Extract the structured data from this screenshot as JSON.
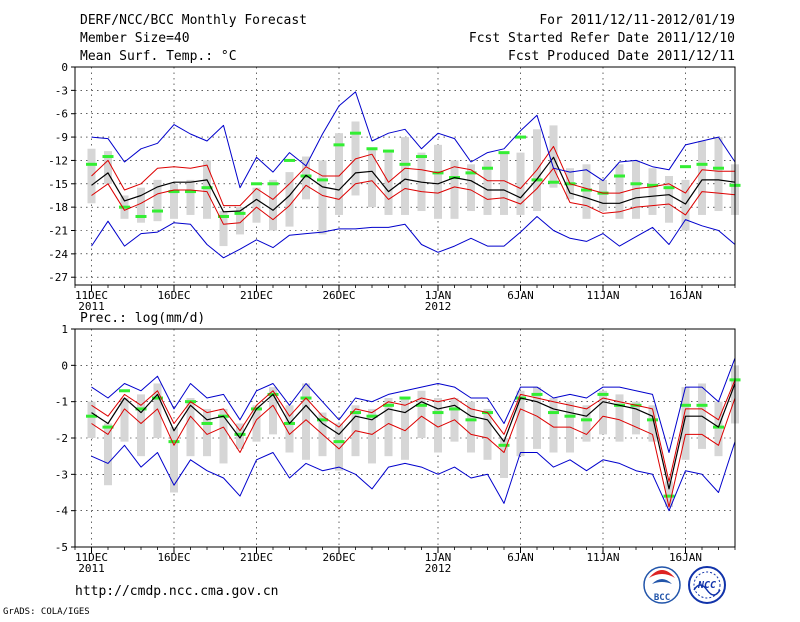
{
  "header": {
    "title_left": "DERF/NCC/BCC Monthly Forecast",
    "member_size": "Member Size=40",
    "title_right": "For 2011/12/11-2012/01/19",
    "started_refer": "Fcst Started Refer Date 2011/12/10",
    "produced": "Fcst Produced Date 2011/12/11"
  },
  "footer": {
    "url": "http://cmdp.ncc.cma.gov.cn",
    "grads": "GrADS: COLA/IGES",
    "logo_bcc": "BCC",
    "logo_ncc": "NCC"
  },
  "colors": {
    "mean": "#000000",
    "band": "#dd0000",
    "envelope": "#0000cc",
    "member_bar": "#d6d6d6",
    "clim": "#33ee33",
    "grid": "#000000"
  },
  "chart_data": [
    {
      "type": "line",
      "title": "Mean Surf. Temp.: °C",
      "ylim": [
        -28,
        0
      ],
      "yticks": [
        0,
        -3,
        -6,
        -9,
        -12,
        -15,
        -18,
        -21,
        -24,
        -27
      ],
      "xlim": [
        0,
        40
      ],
      "xticks": [
        {
          "x": 1,
          "label": "11DEC",
          "sub": "2011"
        },
        {
          "x": 6,
          "label": "16DEC",
          "sub": ""
        },
        {
          "x": 11,
          "label": "21DEC",
          "sub": ""
        },
        {
          "x": 16,
          "label": "26DEC",
          "sub": ""
        },
        {
          "x": 22,
          "label": "1JAN",
          "sub": "2012"
        },
        {
          "x": 27,
          "label": "6JAN",
          "sub": ""
        },
        {
          "x": 32,
          "label": "11JAN",
          "sub": ""
        },
        {
          "x": 37,
          "label": "16JAN",
          "sub": ""
        }
      ],
      "grid": true,
      "x": [
        1,
        2,
        3,
        4,
        5,
        6,
        7,
        8,
        9,
        10,
        11,
        12,
        13,
        14,
        15,
        16,
        17,
        18,
        19,
        20,
        21,
        22,
        23,
        24,
        25,
        26,
        27,
        28,
        29,
        30,
        31,
        32,
        33,
        34,
        35,
        36,
        37,
        38,
        39,
        40
      ],
      "series": [
        {
          "name": "mean",
          "values": [
            -15.2,
            -13.6,
            -17.2,
            -16.5,
            -15.4,
            -14.8,
            -14.8,
            -14.5,
            -18.6,
            -18.5,
            -17.0,
            -18.4,
            -16.5,
            -13.9,
            -15.4,
            -15.8,
            -13.6,
            -13.4,
            -16.0,
            -14.4,
            -14.8,
            -15.0,
            -14.2,
            -14.6,
            -15.8,
            -15.8,
            -16.8,
            -14.4,
            -11.6,
            -16.2,
            -16.8,
            -17.5,
            -17.5,
            -16.8,
            -16.6,
            -16.4,
            -17.6,
            -14.5,
            -14.5,
            -14.8
          ]
        },
        {
          "name": "upper",
          "values": [
            -14.0,
            -12.0,
            -15.8,
            -15.0,
            -13.0,
            -12.8,
            -13.0,
            -12.6,
            -17.8,
            -17.8,
            -15.6,
            -17.0,
            -15.0,
            -12.8,
            -14.0,
            -14.0,
            -11.8,
            -11.2,
            -14.8,
            -13.0,
            -13.2,
            -13.6,
            -12.8,
            -13.2,
            -14.6,
            -14.6,
            -15.6,
            -13.2,
            -10.2,
            -15.0,
            -15.6,
            -16.2,
            -16.2,
            -15.6,
            -15.4,
            -15.0,
            -16.2,
            -13.2,
            -13.4,
            -13.4
          ]
        },
        {
          "name": "lower",
          "values": [
            -16.5,
            -15.0,
            -18.4,
            -17.5,
            -16.3,
            -15.8,
            -15.8,
            -16.0,
            -20.2,
            -20.0,
            -18.0,
            -19.6,
            -17.8,
            -15.2,
            -16.5,
            -17.0,
            -15.0,
            -14.6,
            -17.0,
            -15.6,
            -16.0,
            -16.2,
            -15.4,
            -15.8,
            -17.0,
            -16.8,
            -17.6,
            -15.6,
            -13.0,
            -17.4,
            -17.8,
            -18.8,
            -18.6,
            -18.0,
            -17.8,
            -17.6,
            -19.0,
            -16.0,
            -16.2,
            -16.4
          ]
        },
        {
          "name": "max",
          "values": [
            -9.0,
            -9.2,
            -12.2,
            -10.5,
            -9.8,
            -7.4,
            -8.6,
            -9.5,
            -7.5,
            -15.5,
            -11.6,
            -13.5,
            -11.0,
            -12.7,
            -8.6,
            -5.0,
            -3.2,
            -9.5,
            -8.5,
            -8.0,
            -10.5,
            -8.5,
            -9.2,
            -12.2,
            -11.0,
            -10.5,
            -8.2,
            -6.2,
            -13.0,
            -13.5,
            -13.2,
            -14.6,
            -12.2,
            -12.0,
            -12.8,
            -13.2,
            -10.0,
            -9.5,
            -9.0,
            -12.2
          ]
        },
        {
          "name": "min",
          "values": [
            -23.0,
            -19.8,
            -23.0,
            -21.4,
            -21.2,
            -20.0,
            -20.2,
            -22.8,
            -24.5,
            -23.4,
            -22.2,
            -23.2,
            -21.6,
            -21.4,
            -21.2,
            -20.8,
            -20.8,
            -20.6,
            -20.6,
            -20.2,
            -22.8,
            -23.8,
            -23.0,
            -22.0,
            -23.0,
            -23.0,
            -21.2,
            -19.2,
            -21.0,
            -22.0,
            -22.4,
            -21.4,
            -23.0,
            -21.8,
            -20.6,
            -22.8,
            -19.6,
            -20.4,
            -21.0,
            -22.8
          ]
        }
      ],
      "bars": [
        [
          -17.5,
          -10.5
        ],
        [
          -15.0,
          -10.8
        ],
        [
          -19.5,
          -16.5
        ],
        [
          -20.0,
          -15.5
        ],
        [
          -19.8,
          -14.5
        ],
        [
          -19.5,
          -15.0
        ],
        [
          -19.0,
          -14.5
        ],
        [
          -19.5,
          -12.0
        ],
        [
          -23.0,
          -18.5
        ],
        [
          -21.5,
          -18.0
        ],
        [
          -20.0,
          -15.5
        ],
        [
          -21.0,
          -14.5
        ],
        [
          -20.5,
          -13.5
        ],
        [
          -17.0,
          -11.5
        ],
        [
          -21.5,
          -12.0
        ],
        [
          -19.0,
          -8.5
        ],
        [
          -16.5,
          -7.0
        ],
        [
          -18.0,
          -10.5
        ],
        [
          -19.0,
          -11.0
        ],
        [
          -19.0,
          -9.0
        ],
        [
          -18.5,
          -11.0
        ],
        [
          -19.5,
          -10.0
        ],
        [
          -19.5,
          -12.0
        ],
        [
          -18.5,
          -12.5
        ],
        [
          -19.0,
          -12.0
        ],
        [
          -19.0,
          -11.0
        ],
        [
          -19.0,
          -11.0
        ],
        [
          -18.5,
          -8.0
        ],
        [
          -15.5,
          -7.5
        ],
        [
          -17.0,
          -13.0
        ],
        [
          -19.5,
          -12.5
        ],
        [
          -18.5,
          -14.5
        ],
        [
          -19.5,
          -12.5
        ],
        [
          -19.5,
          -12.0
        ],
        [
          -19.0,
          -13.0
        ],
        [
          -20.0,
          -14.0
        ],
        [
          -21.0,
          -14.5
        ],
        [
          -19.0,
          -9.5
        ],
        [
          -18.5,
          -9.0
        ],
        [
          -19.0,
          -12.5
        ]
      ],
      "clim": [
        -12.5,
        -11.5,
        -18.0,
        -19.2,
        -18.5,
        -16.0,
        -16.0,
        -15.5,
        -19.2,
        -18.8,
        -15.0,
        -15.0,
        -12.0,
        -14.0,
        -14.5,
        -10.0,
        -8.5,
        -10.5,
        -10.8,
        -12.5,
        -11.5,
        -13.6,
        -14.2,
        -13.6,
        -13.0,
        -11.0,
        -9.0,
        -14.5,
        -14.8,
        -15.0,
        -15.8,
        -16.2,
        -14.0,
        -15.0,
        -15.2,
        -15.5,
        -12.8,
        -12.5,
        -13.0,
        -15.2
      ]
    },
    {
      "type": "line",
      "title": "Prec.: log(mm/d)",
      "ylim": [
        -5,
        1
      ],
      "yticks": [
        1,
        0,
        -1,
        -2,
        -3,
        -4,
        -5
      ],
      "xlim": [
        0,
        40
      ],
      "xticks": [
        {
          "x": 1,
          "label": "11DEC",
          "sub": "2011"
        },
        {
          "x": 6,
          "label": "16DEC",
          "sub": ""
        },
        {
          "x": 11,
          "label": "21DEC",
          "sub": ""
        },
        {
          "x": 16,
          "label": "26DEC",
          "sub": ""
        },
        {
          "x": 22,
          "label": "1JAN",
          "sub": "2012"
        },
        {
          "x": 27,
          "label": "6JAN",
          "sub": ""
        },
        {
          "x": 32,
          "label": "11JAN",
          "sub": ""
        },
        {
          "x": 37,
          "label": "16JAN",
          "sub": ""
        }
      ],
      "grid": true,
      "x": [
        1,
        2,
        3,
        4,
        5,
        6,
        7,
        8,
        9,
        10,
        11,
        12,
        13,
        14,
        15,
        16,
        17,
        18,
        19,
        20,
        21,
        22,
        23,
        24,
        25,
        26,
        27,
        28,
        29,
        30,
        31,
        32,
        33,
        34,
        35,
        36,
        37,
        38,
        39,
        40
      ],
      "series": [
        {
          "name": "mean",
          "values": [
            -1.3,
            -1.6,
            -0.9,
            -1.3,
            -0.8,
            -1.8,
            -1.1,
            -1.5,
            -1.4,
            -2.0,
            -1.2,
            -0.8,
            -1.6,
            -1.1,
            -1.6,
            -1.9,
            -1.4,
            -1.5,
            -1.2,
            -1.3,
            -1.0,
            -1.2,
            -1.1,
            -1.4,
            -1.5,
            -2.1,
            -0.9,
            -1.0,
            -1.2,
            -1.3,
            -1.4,
            -1.0,
            -1.1,
            -1.2,
            -1.4,
            -3.4,
            -1.4,
            -1.4,
            -1.7,
            -0.5
          ]
        },
        {
          "name": "upper",
          "values": [
            -1.1,
            -1.4,
            -0.8,
            -1.1,
            -0.7,
            -1.6,
            -1.0,
            -1.3,
            -1.2,
            -1.8,
            -1.1,
            -0.7,
            -1.4,
            -0.9,
            -1.4,
            -1.7,
            -1.2,
            -1.3,
            -1.0,
            -1.1,
            -0.9,
            -1.0,
            -0.9,
            -1.2,
            -1.3,
            -1.9,
            -0.8,
            -0.9,
            -1.0,
            -1.1,
            -1.2,
            -0.9,
            -1.0,
            -1.1,
            -1.2,
            -3.2,
            -1.2,
            -1.2,
            -1.5,
            -0.4
          ]
        },
        {
          "name": "lower",
          "values": [
            -1.6,
            -1.9,
            -1.2,
            -1.6,
            -1.2,
            -2.2,
            -1.4,
            -1.9,
            -1.7,
            -2.4,
            -1.5,
            -1.1,
            -1.9,
            -1.5,
            -1.9,
            -2.3,
            -1.8,
            -1.9,
            -1.6,
            -1.8,
            -1.4,
            -1.7,
            -1.5,
            -1.9,
            -2.0,
            -2.4,
            -1.2,
            -1.4,
            -1.7,
            -1.7,
            -1.9,
            -1.4,
            -1.5,
            -1.7,
            -1.9,
            -3.9,
            -1.9,
            -1.9,
            -2.2,
            -0.9
          ]
        },
        {
          "name": "max",
          "values": [
            -0.6,
            -0.9,
            -0.5,
            -0.7,
            -0.3,
            -1.2,
            -0.5,
            -0.9,
            -0.8,
            -1.5,
            -0.7,
            -0.5,
            -1.1,
            -0.5,
            -1.0,
            -1.5,
            -0.9,
            -1.0,
            -0.8,
            -0.7,
            -0.6,
            -0.5,
            -0.6,
            -0.9,
            -0.9,
            -1.6,
            -0.6,
            -0.6,
            -0.9,
            -0.8,
            -0.9,
            -0.6,
            -0.6,
            -0.7,
            -0.8,
            -2.4,
            -0.6,
            -0.6,
            -1.0,
            0.2
          ]
        },
        {
          "name": "min",
          "values": [
            -2.5,
            -2.7,
            -2.2,
            -2.8,
            -2.4,
            -3.3,
            -2.6,
            -2.9,
            -3.1,
            -3.6,
            -2.6,
            -2.4,
            -3.1,
            -2.7,
            -2.9,
            -2.8,
            -3.0,
            -3.4,
            -2.8,
            -2.7,
            -2.8,
            -3.0,
            -2.8,
            -3.1,
            -3.0,
            -3.8,
            -2.4,
            -2.4,
            -2.8,
            -2.6,
            -2.9,
            -2.6,
            -2.7,
            -2.9,
            -3.0,
            -4.0,
            -2.9,
            -3.0,
            -3.5,
            -2.1
          ]
        }
      ],
      "bars": [
        [
          -2.0,
          -1.0
        ],
        [
          -3.3,
          -1.6
        ],
        [
          -2.1,
          -0.9
        ],
        [
          -2.5,
          -0.8
        ],
        [
          -2.0,
          -0.5
        ],
        [
          -3.5,
          -1.7
        ],
        [
          -2.5,
          -0.9
        ],
        [
          -2.5,
          -1.2
        ],
        [
          -2.7,
          -1.2
        ],
        [
          -2.3,
          -1.6
        ],
        [
          -2.1,
          -1.1
        ],
        [
          -1.9,
          -0.6
        ],
        [
          -2.4,
          -1.1
        ],
        [
          -2.6,
          -0.5
        ],
        [
          -2.5,
          -1.3
        ],
        [
          -2.9,
          -1.6
        ],
        [
          -2.5,
          -1.1
        ],
        [
          -2.7,
          -1.2
        ],
        [
          -2.5,
          -0.9
        ],
        [
          -2.6,
          -0.9
        ],
        [
          -2.0,
          -0.7
        ],
        [
          -2.4,
          -0.9
        ],
        [
          -2.1,
          -0.9
        ],
        [
          -2.4,
          -1.0
        ],
        [
          -2.6,
          -1.2
        ],
        [
          -3.1,
          -2.0
        ],
        [
          -2.5,
          -0.7
        ],
        [
          -2.3,
          -0.6
        ],
        [
          -2.4,
          -0.9
        ],
        [
          -2.4,
          -1.0
        ],
        [
          -2.1,
          -1.1
        ],
        [
          -1.9,
          -0.7
        ],
        [
          -2.1,
          -0.8
        ],
        [
          -1.9,
          -1.0
        ],
        [
          -2.1,
          -1.1
        ],
        [
          -3.9,
          -3.2
        ],
        [
          -2.6,
          -0.6
        ],
        [
          -2.3,
          -0.5
        ],
        [
          -2.5,
          -1.0
        ],
        [
          -1.6,
          0.0
        ]
      ],
      "clim": [
        -1.4,
        -1.7,
        -0.7,
        -1.2,
        -0.9,
        -2.1,
        -1.0,
        -1.6,
        -1.4,
        -1.9,
        -1.2,
        -0.8,
        -1.6,
        -0.9,
        -1.5,
        -2.1,
        -1.3,
        -1.4,
        -1.1,
        -0.9,
        -1.1,
        -1.3,
        -1.2,
        -1.5,
        -1.3,
        -2.2,
        -0.9,
        -0.8,
        -1.3,
        -1.4,
        -1.5,
        -0.8,
        -1.1,
        -1.1,
        -1.5,
        -3.6,
        -1.1,
        -1.1,
        -1.7,
        -0.4
      ]
    }
  ]
}
